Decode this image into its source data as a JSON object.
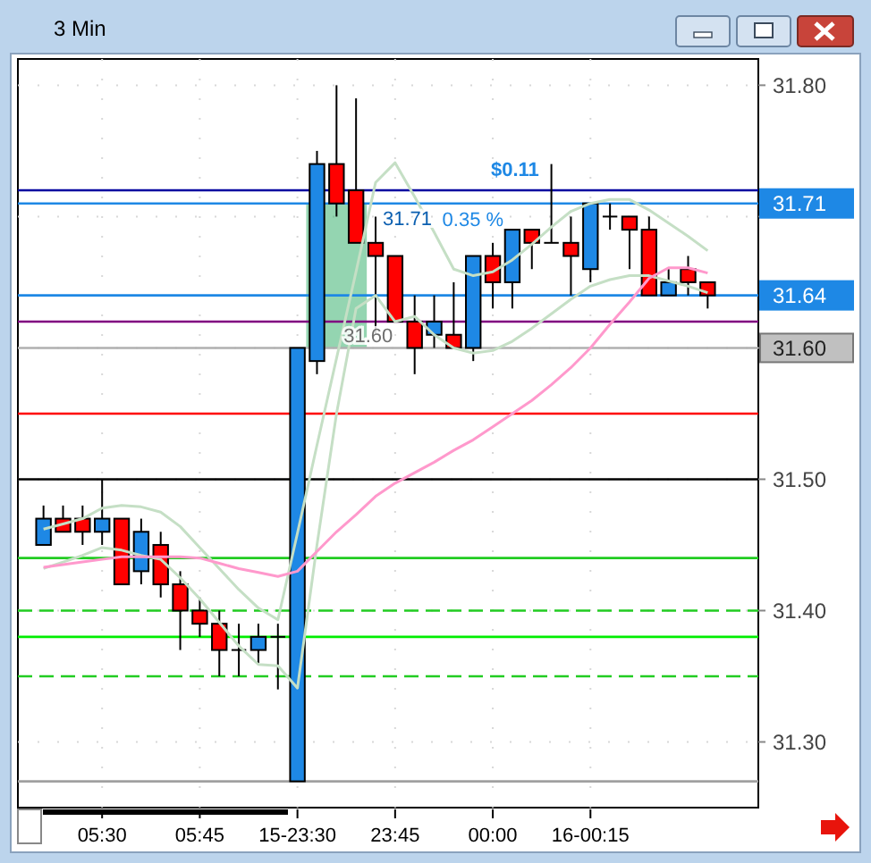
{
  "chart_data": {
    "type": "candlestick",
    "title": "3 Min",
    "categories": [
      null,
      null,
      null,
      "05:30",
      null,
      null,
      null,
      null,
      "05:45",
      null,
      null,
      null,
      null,
      "15-23:30",
      null,
      null,
      null,
      null,
      "23:45",
      null,
      null,
      null,
      null,
      "00:00",
      null,
      null,
      null,
      null,
      "16-00:15",
      null,
      null,
      null,
      null,
      null,
      null
    ],
    "ohlc": [
      [
        31.45,
        31.48,
        31.45,
        31.47
      ],
      [
        31.47,
        31.48,
        31.46,
        31.46
      ],
      [
        31.47,
        31.48,
        31.45,
        31.46
      ],
      [
        31.46,
        31.5,
        31.45,
        31.47
      ],
      [
        31.47,
        31.47,
        31.42,
        31.42
      ],
      [
        31.43,
        31.47,
        31.42,
        31.46
      ],
      [
        31.45,
        31.46,
        31.41,
        31.42
      ],
      [
        31.42,
        31.43,
        31.37,
        31.4
      ],
      [
        31.4,
        31.41,
        31.38,
        31.39
      ],
      [
        31.39,
        31.4,
        31.35,
        31.37
      ],
      [
        31.37,
        31.39,
        31.35,
        31.37
      ],
      [
        31.37,
        31.39,
        31.36,
        31.38
      ],
      [
        31.38,
        31.39,
        31.34,
        31.38
      ],
      [
        31.27,
        31.6,
        31.27,
        31.6
      ],
      [
        31.59,
        31.75,
        31.58,
        31.74
      ],
      [
        31.74,
        31.8,
        31.7,
        31.71
      ],
      [
        31.72,
        31.79,
        31.68,
        31.68
      ],
      [
        31.68,
        31.7,
        31.61,
        31.67
      ],
      [
        31.67,
        31.67,
        31.62,
        31.62
      ],
      [
        31.62,
        31.64,
        31.58,
        31.6
      ],
      [
        31.61,
        31.64,
        31.6,
        31.62
      ],
      [
        31.61,
        31.65,
        31.6,
        31.6
      ],
      [
        31.6,
        31.67,
        31.59,
        31.67
      ],
      [
        31.67,
        31.68,
        31.63,
        31.65
      ],
      [
        31.65,
        31.69,
        31.63,
        31.69
      ],
      [
        31.69,
        31.69,
        31.66,
        31.68
      ],
      [
        31.68,
        31.74,
        31.68,
        31.68
      ],
      [
        31.68,
        31.7,
        31.64,
        31.67
      ],
      [
        31.66,
        31.71,
        31.65,
        31.71
      ],
      [
        31.7,
        31.71,
        31.69,
        31.7
      ],
      [
        31.7,
        31.7,
        31.66,
        31.69
      ],
      [
        31.69,
        31.7,
        31.64,
        31.64
      ],
      [
        31.64,
        31.66,
        31.64,
        31.65
      ],
      [
        31.66,
        31.67,
        31.64,
        31.65
      ],
      [
        31.65,
        31.65,
        31.63,
        31.64
      ]
    ],
    "colors": [
      "#1e88e5",
      "#ff0000",
      "#ff0000",
      "#1e88e5",
      "#ff0000",
      "#1e88e5",
      "#ff0000",
      "#ff0000",
      "#ff0000",
      "#ff0000",
      "#000000",
      "#1e88e5",
      "#000000",
      "#1e88e5",
      "#1e88e5",
      "#ff0000",
      "#ff0000",
      "#ff0000",
      "#ff0000",
      "#ff0000",
      "#1e88e5",
      "#ff0000",
      "#1e88e5",
      "#ff0000",
      "#1e88e5",
      "#ff0000",
      "#000000",
      "#ff0000",
      "#1e88e5",
      "#000000",
      "#ff0000",
      "#ff0000",
      "#1e88e5",
      "#ff0000",
      "#ff0000"
    ],
    "series": [
      {
        "type": "line",
        "color": "#c5dfc5",
        "values": [
          31.462,
          31.466,
          31.47,
          31.478,
          31.48,
          31.479,
          31.475,
          31.464,
          31.448,
          31.432,
          31.416,
          31.402,
          31.393,
          31.459,
          31.526,
          31.592,
          31.658,
          31.726,
          31.741,
          31.715,
          31.688,
          31.66,
          31.655,
          31.658,
          31.667,
          31.679,
          31.692,
          31.704,
          31.71,
          31.713,
          31.713,
          31.705,
          31.695,
          31.685,
          31.674
        ]
      },
      {
        "type": "line",
        "color": "#c5dfc5",
        "values": [
          31.432,
          31.437,
          31.442,
          31.448,
          31.446,
          31.442,
          31.439,
          31.425,
          31.409,
          31.391,
          31.373,
          31.359,
          31.358,
          31.341,
          31.45,
          31.55,
          31.63,
          31.64,
          31.62,
          31.624,
          31.61,
          31.6,
          31.596,
          31.598,
          31.605,
          31.615,
          31.626,
          31.637,
          31.647,
          31.652,
          31.655,
          31.655,
          31.651,
          31.647,
          31.642
        ]
      },
      {
        "type": "line",
        "color": "#ff99cc",
        "values": [
          31.433,
          31.435,
          31.437,
          31.439,
          31.441,
          31.441,
          31.441,
          31.441,
          31.44,
          31.436,
          31.432,
          31.429,
          31.426,
          31.43,
          31.445,
          31.46,
          31.473,
          31.487,
          31.497,
          31.505,
          31.513,
          31.522,
          31.53,
          31.54,
          31.55,
          31.56,
          31.572,
          31.585,
          31.6,
          31.618,
          31.635,
          31.653,
          31.661,
          31.661,
          31.657
        ]
      }
    ],
    "ylim": [
      31.25,
      31.82
    ],
    "yticks": [
      {
        "value": 31.3,
        "label": "31.30"
      },
      {
        "value": 31.4,
        "label": "31.40"
      },
      {
        "value": 31.5,
        "label": "31.50"
      },
      {
        "value": 31.6,
        "label": null
      },
      {
        "value": 31.7,
        "label": null
      },
      {
        "value": 31.8,
        "label": "31.80"
      }
    ],
    "ref_lines": [
      {
        "axis": "y",
        "value": 31.72,
        "color": "#0000a0"
      },
      {
        "axis": "y",
        "value": 31.71,
        "label": "31.71",
        "color": "#1e88e5"
      },
      {
        "axis": "y",
        "value": 31.64,
        "label": "31.64",
        "color": "#1e88e5"
      },
      {
        "axis": "y",
        "value": 31.62,
        "color": "#800080"
      },
      {
        "axis": "y",
        "value": 31.6,
        "label": "31.60",
        "color": "#b0b0b0"
      },
      {
        "axis": "y",
        "value": 31.55,
        "color": "#ff0000"
      },
      {
        "axis": "y",
        "value": 31.5,
        "color": "#000000"
      },
      {
        "axis": "y",
        "value": 31.44,
        "color": "#22cc22"
      },
      {
        "axis": "y",
        "value": 31.4,
        "color": "#22cc22",
        "line_style": "dashed"
      },
      {
        "axis": "y",
        "value": 31.38,
        "color": "#00ee00"
      },
      {
        "axis": "y",
        "value": 31.35,
        "color": "#22cc22",
        "line_style": "dashed"
      },
      {
        "axis": "y",
        "value": 31.27,
        "color": "#a0a0a0"
      }
    ],
    "bands": [
      {
        "axis": "y",
        "from": 31.6,
        "to": 31.71,
        "color": "#3cb371"
      }
    ],
    "annotations": [
      {
        "text": "31.71",
        "y": 31.71
      },
      {
        "text": "31.60",
        "y": 31.6
      },
      {
        "text": "$0.11",
        "y": 31.72
      },
      "0.35 %"
    ],
    "grid": true
  }
}
